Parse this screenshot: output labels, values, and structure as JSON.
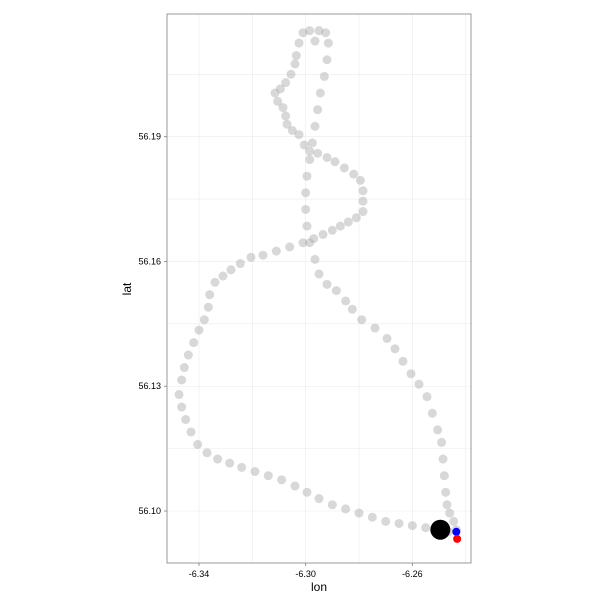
{
  "chart_data": {
    "type": "scatter",
    "title": "",
    "xlabel": "lon",
    "ylabel": "lat",
    "xlim": [
      -6.352,
      -6.238
    ],
    "ylim": [
      56.0875,
      56.2195
    ],
    "x_ticks": [
      -6.34,
      -6.3,
      -6.26
    ],
    "x_tick_labels": [
      "-6.34",
      "-6.30",
      "-6.26"
    ],
    "y_ticks": [
      56.1,
      56.13,
      56.16,
      56.19
    ],
    "y_tick_labels": [
      "56.10",
      "56.13",
      "56.16",
      "56.19"
    ],
    "grid": true,
    "background": "#ffffff",
    "grid_color": "#ebebeb",
    "border_color": "#7f7f7f",
    "track_color": "#a9a9a9",
    "series": [
      {
        "points": [
          [
            -6.2435,
            56.0955
          ],
          [
            -6.2445,
            56.0975
          ],
          [
            -6.246,
            56.0995
          ],
          [
            -6.247,
            56.1015
          ],
          [
            -6.2475,
            56.1045
          ],
          [
            -6.248,
            56.1085
          ],
          [
            -6.2485,
            56.1125
          ],
          [
            -6.249,
            56.1165
          ],
          [
            -6.2505,
            56.1195
          ],
          [
            -6.2525,
            56.1235
          ],
          [
            -6.2545,
            56.1275
          ],
          [
            -6.2575,
            56.1305
          ],
          [
            -6.2605,
            56.133
          ],
          [
            -6.2635,
            56.136
          ],
          [
            -6.2665,
            56.139
          ],
          [
            -6.2695,
            56.1415
          ],
          [
            -6.274,
            56.144
          ],
          [
            -6.279,
            56.146
          ],
          [
            -6.2825,
            56.1485
          ],
          [
            -6.285,
            56.1505
          ],
          [
            -6.2885,
            56.153
          ],
          [
            -6.292,
            56.1545
          ],
          [
            -6.295,
            56.157
          ],
          [
            -6.2965,
            56.1605
          ],
          [
            -6.2985,
            56.1645
          ],
          [
            -6.2995,
            56.1685
          ],
          [
            -6.3,
            56.1725
          ],
          [
            -6.3,
            56.1765
          ],
          [
            -6.2995,
            56.1805
          ],
          [
            -6.2985,
            56.1845
          ],
          [
            -6.2975,
            56.1885
          ],
          [
            -6.2965,
            56.1925
          ],
          [
            -6.2955,
            56.1965
          ],
          [
            -6.2945,
            56.2005
          ],
          [
            -6.293,
            56.2045
          ],
          [
            -6.292,
            56.2085
          ],
          [
            -6.2915,
            56.2125
          ],
          [
            -6.2925,
            56.215
          ],
          [
            -6.295,
            56.2155
          ],
          [
            -6.2965,
            56.213
          ],
          [
            -6.2985,
            56.2155
          ],
          [
            -6.301,
            56.215
          ],
          [
            -6.3025,
            56.2125
          ],
          [
            -6.3035,
            56.2095
          ],
          [
            -6.304,
            56.2075
          ],
          [
            -6.3055,
            56.205
          ],
          [
            -6.3075,
            56.203
          ],
          [
            -6.3095,
            56.2015
          ],
          [
            -6.3115,
            56.2005
          ],
          [
            -6.3105,
            56.1985
          ],
          [
            -6.3085,
            56.197
          ],
          [
            -6.3075,
            56.195
          ],
          [
            -6.307,
            56.193
          ],
          [
            -6.305,
            56.1915
          ],
          [
            -6.3025,
            56.1905
          ],
          [
            -6.3005,
            56.188
          ],
          [
            -6.2985,
            56.1865
          ],
          [
            -6.2955,
            56.186
          ],
          [
            -6.292,
            56.185
          ],
          [
            -6.289,
            56.184
          ],
          [
            -6.2855,
            56.1825
          ],
          [
            -6.282,
            56.181
          ],
          [
            -6.2795,
            56.1795
          ],
          [
            -6.2785,
            56.177
          ],
          [
            -6.2785,
            56.1745
          ],
          [
            -6.2785,
            56.172
          ],
          [
            -6.281,
            56.1705
          ],
          [
            -6.284,
            56.1695
          ],
          [
            -6.287,
            56.1685
          ],
          [
            -6.29,
            56.1675
          ],
          [
            -6.2935,
            56.1665
          ],
          [
            -6.297,
            56.1655
          ],
          [
            -6.301,
            56.1645
          ],
          [
            -6.306,
            56.1635
          ],
          [
            -6.311,
            56.1625
          ],
          [
            -6.316,
            56.1615
          ],
          [
            -6.3205,
            56.161
          ],
          [
            -6.3245,
            56.1595
          ],
          [
            -6.328,
            56.158
          ],
          [
            -6.331,
            56.1565
          ],
          [
            -6.334,
            56.155
          ],
          [
            -6.336,
            56.152
          ],
          [
            -6.3365,
            56.149
          ],
          [
            -6.338,
            56.146
          ],
          [
            -6.34,
            56.1435
          ],
          [
            -6.342,
            56.1405
          ],
          [
            -6.344,
            56.1375
          ],
          [
            -6.3455,
            56.1345
          ],
          [
            -6.3465,
            56.1315
          ],
          [
            -6.3475,
            56.128
          ],
          [
            -6.3465,
            56.125
          ],
          [
            -6.345,
            56.122
          ],
          [
            -6.343,
            56.119
          ],
          [
            -6.3405,
            56.116
          ],
          [
            -6.337,
            56.114
          ],
          [
            -6.333,
            56.1125
          ],
          [
            -6.3285,
            56.1115
          ],
          [
            -6.324,
            56.1105
          ],
          [
            -6.319,
            56.1095
          ],
          [
            -6.314,
            56.1085
          ],
          [
            -6.309,
            56.1075
          ],
          [
            -6.304,
            56.106
          ],
          [
            -6.2995,
            56.1045
          ],
          [
            -6.295,
            56.103
          ],
          [
            -6.29,
            56.1015
          ],
          [
            -6.285,
            56.1005
          ],
          [
            -6.28,
            56.0995
          ],
          [
            -6.275,
            56.0985
          ],
          [
            -6.27,
            56.0975
          ],
          [
            -6.265,
            56.097
          ],
          [
            -6.26,
            56.0965
          ],
          [
            -6.255,
            56.096
          ],
          [
            -6.2505,
            56.0955
          ],
          [
            -6.2465,
            56.095
          ]
        ]
      }
    ],
    "markers": [
      {
        "x": -6.2495,
        "y": 56.0955,
        "color": "#000000",
        "size": "large"
      },
      {
        "x": -6.2435,
        "y": 56.095,
        "color": "#0000ff",
        "size": "small"
      },
      {
        "x": -6.2432,
        "y": 56.0933,
        "color": "#ff0000",
        "size": "small"
      }
    ]
  }
}
